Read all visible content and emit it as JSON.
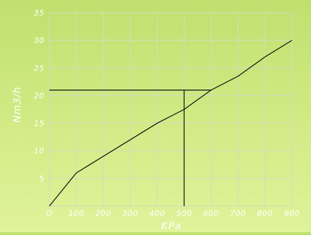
{
  "chart_data": {
    "type": "line",
    "title": "",
    "xlabel": "KPa",
    "ylabel": "Nm3/h",
    "xlim": [
      0,
      900
    ],
    "ylim": [
      0,
      35
    ],
    "x_ticks": [
      0,
      100,
      200,
      300,
      400,
      500,
      600,
      700,
      800,
      900
    ],
    "x_tick_labels": [
      "O",
      "100",
      "200",
      "300",
      "400",
      "500",
      "600",
      "700",
      "800",
      "900"
    ],
    "y_ticks": [
      5,
      10,
      15,
      20,
      25,
      30,
      35
    ],
    "y_tick_labels": [
      "5",
      "10",
      "15",
      "20",
      "25",
      "30",
      "35"
    ],
    "grid": true,
    "legend": "none",
    "series": [
      {
        "x": [
          0,
          100,
          200,
          300,
          400,
          500,
          600,
          700,
          800,
          900
        ],
        "y": [
          0,
          6,
          9,
          12,
          15,
          17.5,
          21,
          23.5,
          27,
          30
        ]
      }
    ],
    "reference_lines": [
      {
        "orientation": "horizontal",
        "value": 21,
        "from": 0,
        "to": 600
      },
      {
        "orientation": "vertical",
        "value": 500,
        "from": 0,
        "to": 21
      }
    ],
    "colors": {
      "background_top": "#bfe06e",
      "background_bottom": "#e0f29a",
      "grid": "#d4dcc0",
      "line": "#111111",
      "text": "#ffffff"
    }
  }
}
